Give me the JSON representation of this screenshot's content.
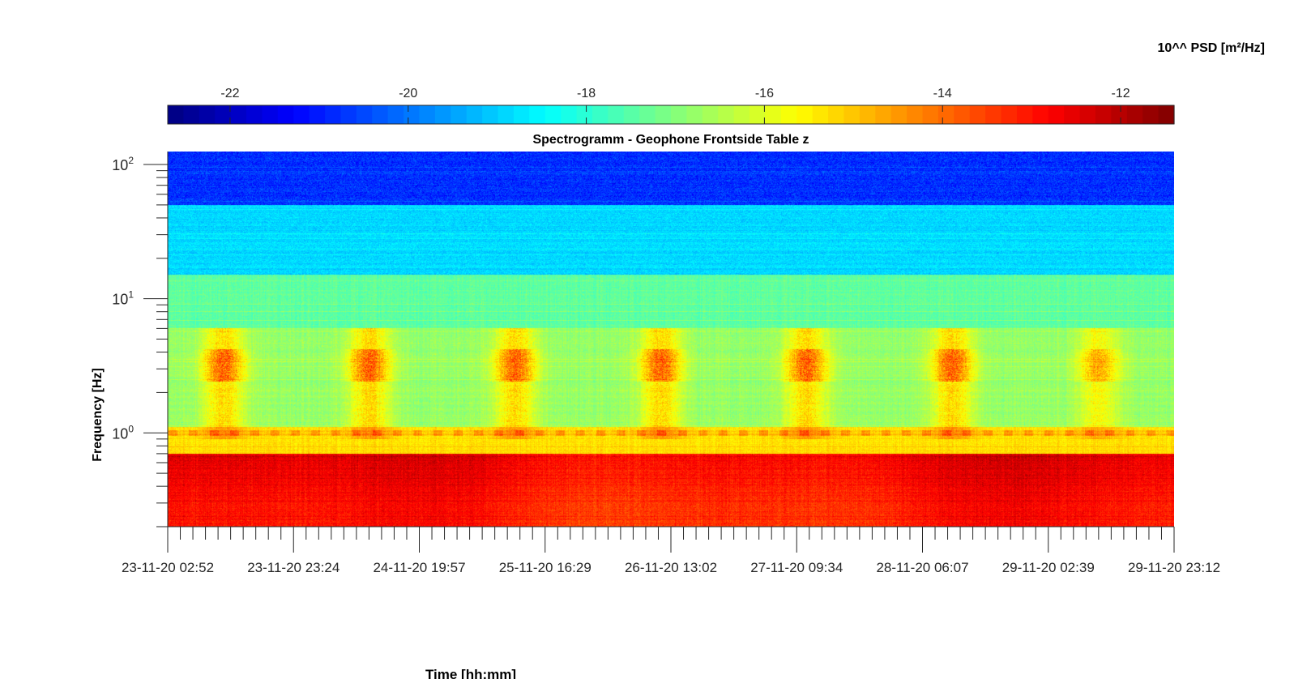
{
  "chart_data": {
    "type": "heatmap",
    "title": "Spectrogramm - Geophone Frontside Table z",
    "xlabel": "Time [hh:mm]",
    "ylabel": "Frequency [Hz]",
    "y_scale": "log",
    "ylim": [
      0.2,
      125
    ],
    "y_ticks": [
      1,
      10,
      100
    ],
    "y_tick_labels": [
      {
        "base": "10",
        "exp": "0"
      },
      {
        "base": "10",
        "exp": "1"
      },
      {
        "base": "10",
        "exp": "2"
      }
    ],
    "x_tick_labels": [
      "23-11-20 02:52",
      "23-11-20 23:24",
      "24-11-20 19:57",
      "25-11-20 16:29",
      "26-11-20 13:02",
      "27-11-20 09:34",
      "28-11-20 06:07",
      "29-11-20 02:39",
      "29-11-20 23:12"
    ],
    "colorbar": {
      "title": "10^^ PSD [m²/Hz]",
      "colormap": "jet",
      "location": "top",
      "range": [
        -22.7,
        -11.4
      ],
      "ticks": [
        -22,
        -20,
        -18,
        -16,
        -14,
        -12
      ],
      "tick_labels": [
        "-22",
        "-20",
        "-18",
        "-16",
        "-14",
        "-12"
      ]
    },
    "bands": [
      {
        "f_range": [
          50,
          125
        ],
        "log_psd": -20.8
      },
      {
        "f_range": [
          15,
          50
        ],
        "log_psd": -18.9
      },
      {
        "f_range": [
          6,
          15
        ],
        "log_psd": -17.4
      },
      {
        "f_range": [
          1.1,
          6
        ],
        "log_psd": -16.8
      },
      {
        "f_range": [
          0.7,
          1.1
        ],
        "log_psd": -15.3
      },
      {
        "f_range": [
          0.2,
          0.7
        ],
        "log_psd": -12.6
      }
    ],
    "daytime_activity": {
      "f_range": [
        0.9,
        6
      ],
      "peak_log_psd": -13.5,
      "note_peaks_at": [
        "23-11-20",
        "24-11-20",
        "25-11-20",
        "26-11-20",
        "27-11-20",
        "28-11-20"
      ]
    }
  }
}
